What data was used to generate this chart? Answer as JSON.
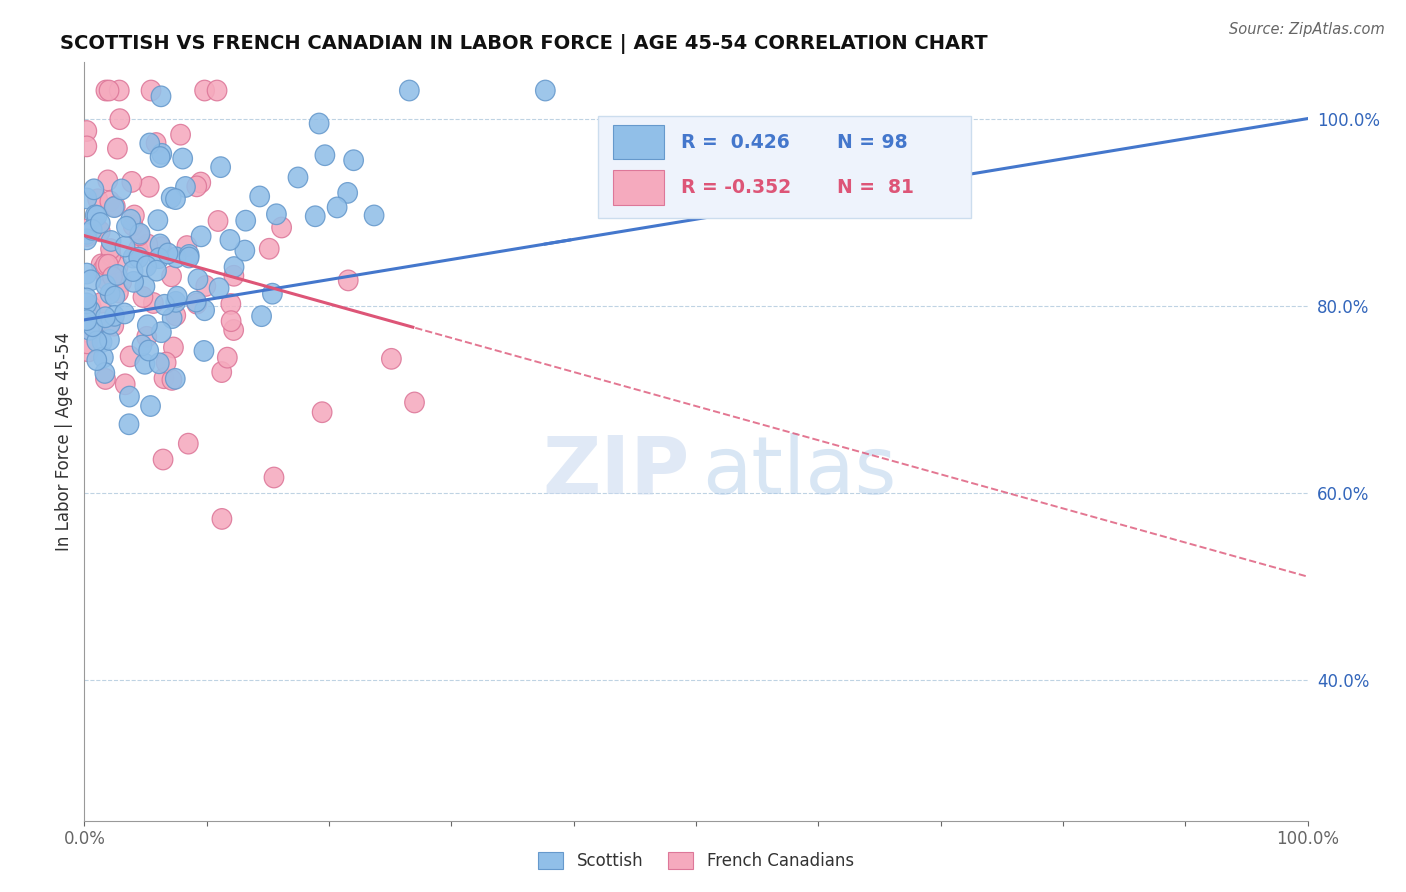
{
  "title": "SCOTTISH VS FRENCH CANADIAN IN LABOR FORCE | AGE 45-54 CORRELATION CHART",
  "source": "Source: ZipAtlas.com",
  "ylabel": "In Labor Force | Age 45-54",
  "xlim": [
    0.0,
    1.0
  ],
  "ylim": [
    0.25,
    1.06
  ],
  "y_ticks": [
    0.4,
    0.6,
    0.8,
    1.0
  ],
  "y_tick_labels": [
    "40.0%",
    "60.0%",
    "80.0%",
    "100.0%"
  ],
  "hlines": [
    0.4,
    0.6,
    0.8,
    1.0
  ],
  "scottish_R": 0.426,
  "scottish_N": 98,
  "french_R": -0.352,
  "french_N": 81,
  "scottish_color": "#91bfe8",
  "french_color": "#f5aabe",
  "scottish_edge_color": "#6699cc",
  "french_edge_color": "#dd7799",
  "scottish_line_color": "#4477cc",
  "french_line_color": "#dd5577",
  "watermark_zip": "#c8d8ef",
  "watermark_atlas": "#aac8e8",
  "legend_bg": "#eef3fc",
  "legend_border": "#ccddee"
}
